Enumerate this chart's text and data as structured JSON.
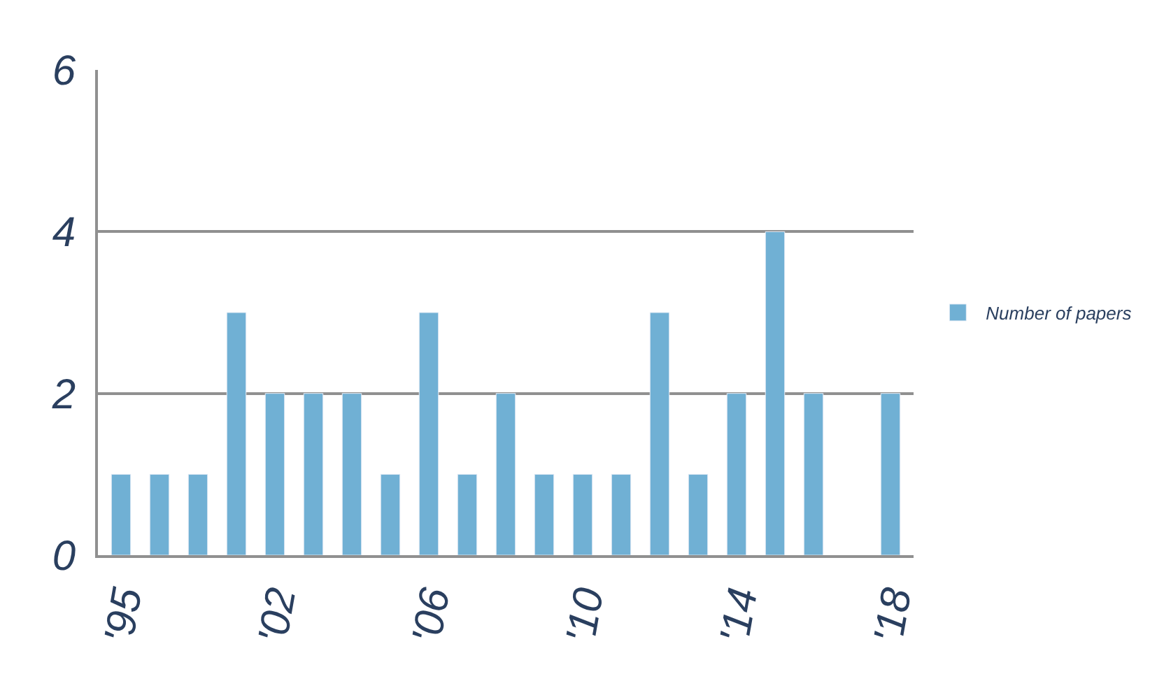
{
  "chart_data": {
    "type": "bar",
    "categories": [
      "'95",
      null,
      null,
      null,
      "'02",
      null,
      null,
      null,
      "'06",
      null,
      null,
      null,
      "'10",
      null,
      null,
      null,
      "'14",
      null,
      null,
      null,
      "'18"
    ],
    "series": [
      {
        "name": "Number of papers",
        "color": "#70b0d4",
        "values": [
          1,
          1,
          1,
          3,
          2,
          2,
          2,
          1,
          3,
          1,
          2,
          1,
          1,
          1,
          3,
          1,
          2,
          4,
          2,
          null,
          2
        ]
      }
    ],
    "ylim": [
      0,
      6
    ],
    "yticks": [
      0,
      2,
      4,
      6
    ],
    "grid": "y",
    "legend": "right"
  }
}
